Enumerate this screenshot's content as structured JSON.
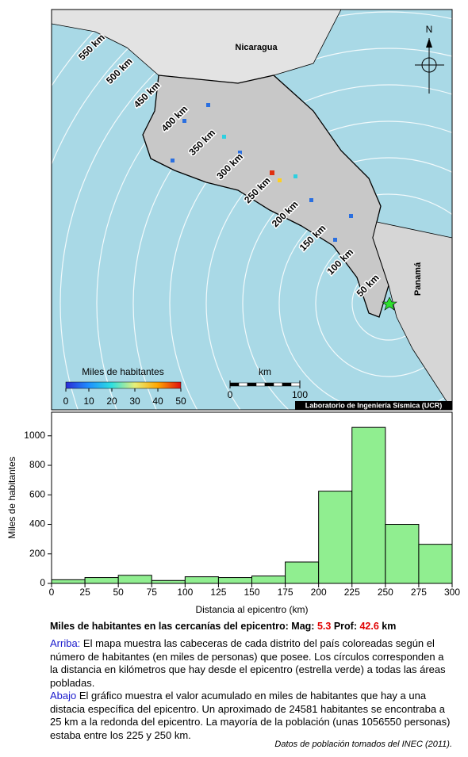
{
  "map": {
    "countries": [
      "Nicaragua",
      "Panamá"
    ],
    "distance_labels": [
      "50 km",
      "100 km",
      "150 km",
      "200 km",
      "250 km",
      "300 km",
      "350 km",
      "400 km",
      "450 km",
      "500 km",
      "550 km"
    ],
    "north": "N",
    "colorbar": {
      "title": "Miles de habitantes",
      "range": [
        0,
        50
      ],
      "ticks": [
        0,
        10,
        20,
        30,
        40,
        50
      ]
    },
    "scale": {
      "label": "km",
      "range": [
        0,
        100
      ],
      "ticks": [
        0,
        100
      ]
    },
    "credit": "Laboratorio de Ingeniería Sísmica (UCR)"
  },
  "chart_data": {
    "type": "histogram",
    "xlabel": "Distancia al epicentro (km)",
    "ylabel": "Miles de habitantes",
    "bins": [
      0,
      25,
      50,
      75,
      100,
      125,
      150,
      175,
      200,
      225,
      250,
      275,
      300
    ],
    "values": [
      25,
      40,
      55,
      20,
      45,
      40,
      50,
      145,
      625,
      1057,
      400,
      265
    ],
    "color": "#90ee90",
    "xlim": [
      0,
      300
    ],
    "xticks": [
      0,
      25,
      50,
      75,
      100,
      125,
      150,
      175,
      200,
      225,
      250,
      275,
      300
    ],
    "ylim": [
      0,
      1160
    ],
    "yticks": [
      0,
      200,
      400,
      600,
      800,
      1000
    ]
  },
  "caption": {
    "title": "Miles de habitantes en las cercanías del epicentro: Mag:",
    "mag": "5.3",
    "prof_label": "Prof:",
    "prof": "42.6",
    "prof_unit": "km",
    "above_label": "Arriba:",
    "above_text": "El mapa muestra las cabeceras de cada distrito del país coloreadas según el número de habitantes (en miles de personas) que posee.  Los círculos corresponden a la distancia en kilómetros que hay desde el epicentro (estrella verde) a todas las áreas pobladas.",
    "below_label": "Abajo",
    "below_text": "El gráfico muestra el valor acumulado en miles de habitantes que hay a una distacia específica del epicentro.  Un aproximado de 24581 habitantes se encontraba a 25 km a la redonda del epicentro.  La mayoría de la población (unas 1056550 personas) estaba entre los 225 y 250 km.",
    "source": "Datos de población tomados del INEC (2011)."
  }
}
